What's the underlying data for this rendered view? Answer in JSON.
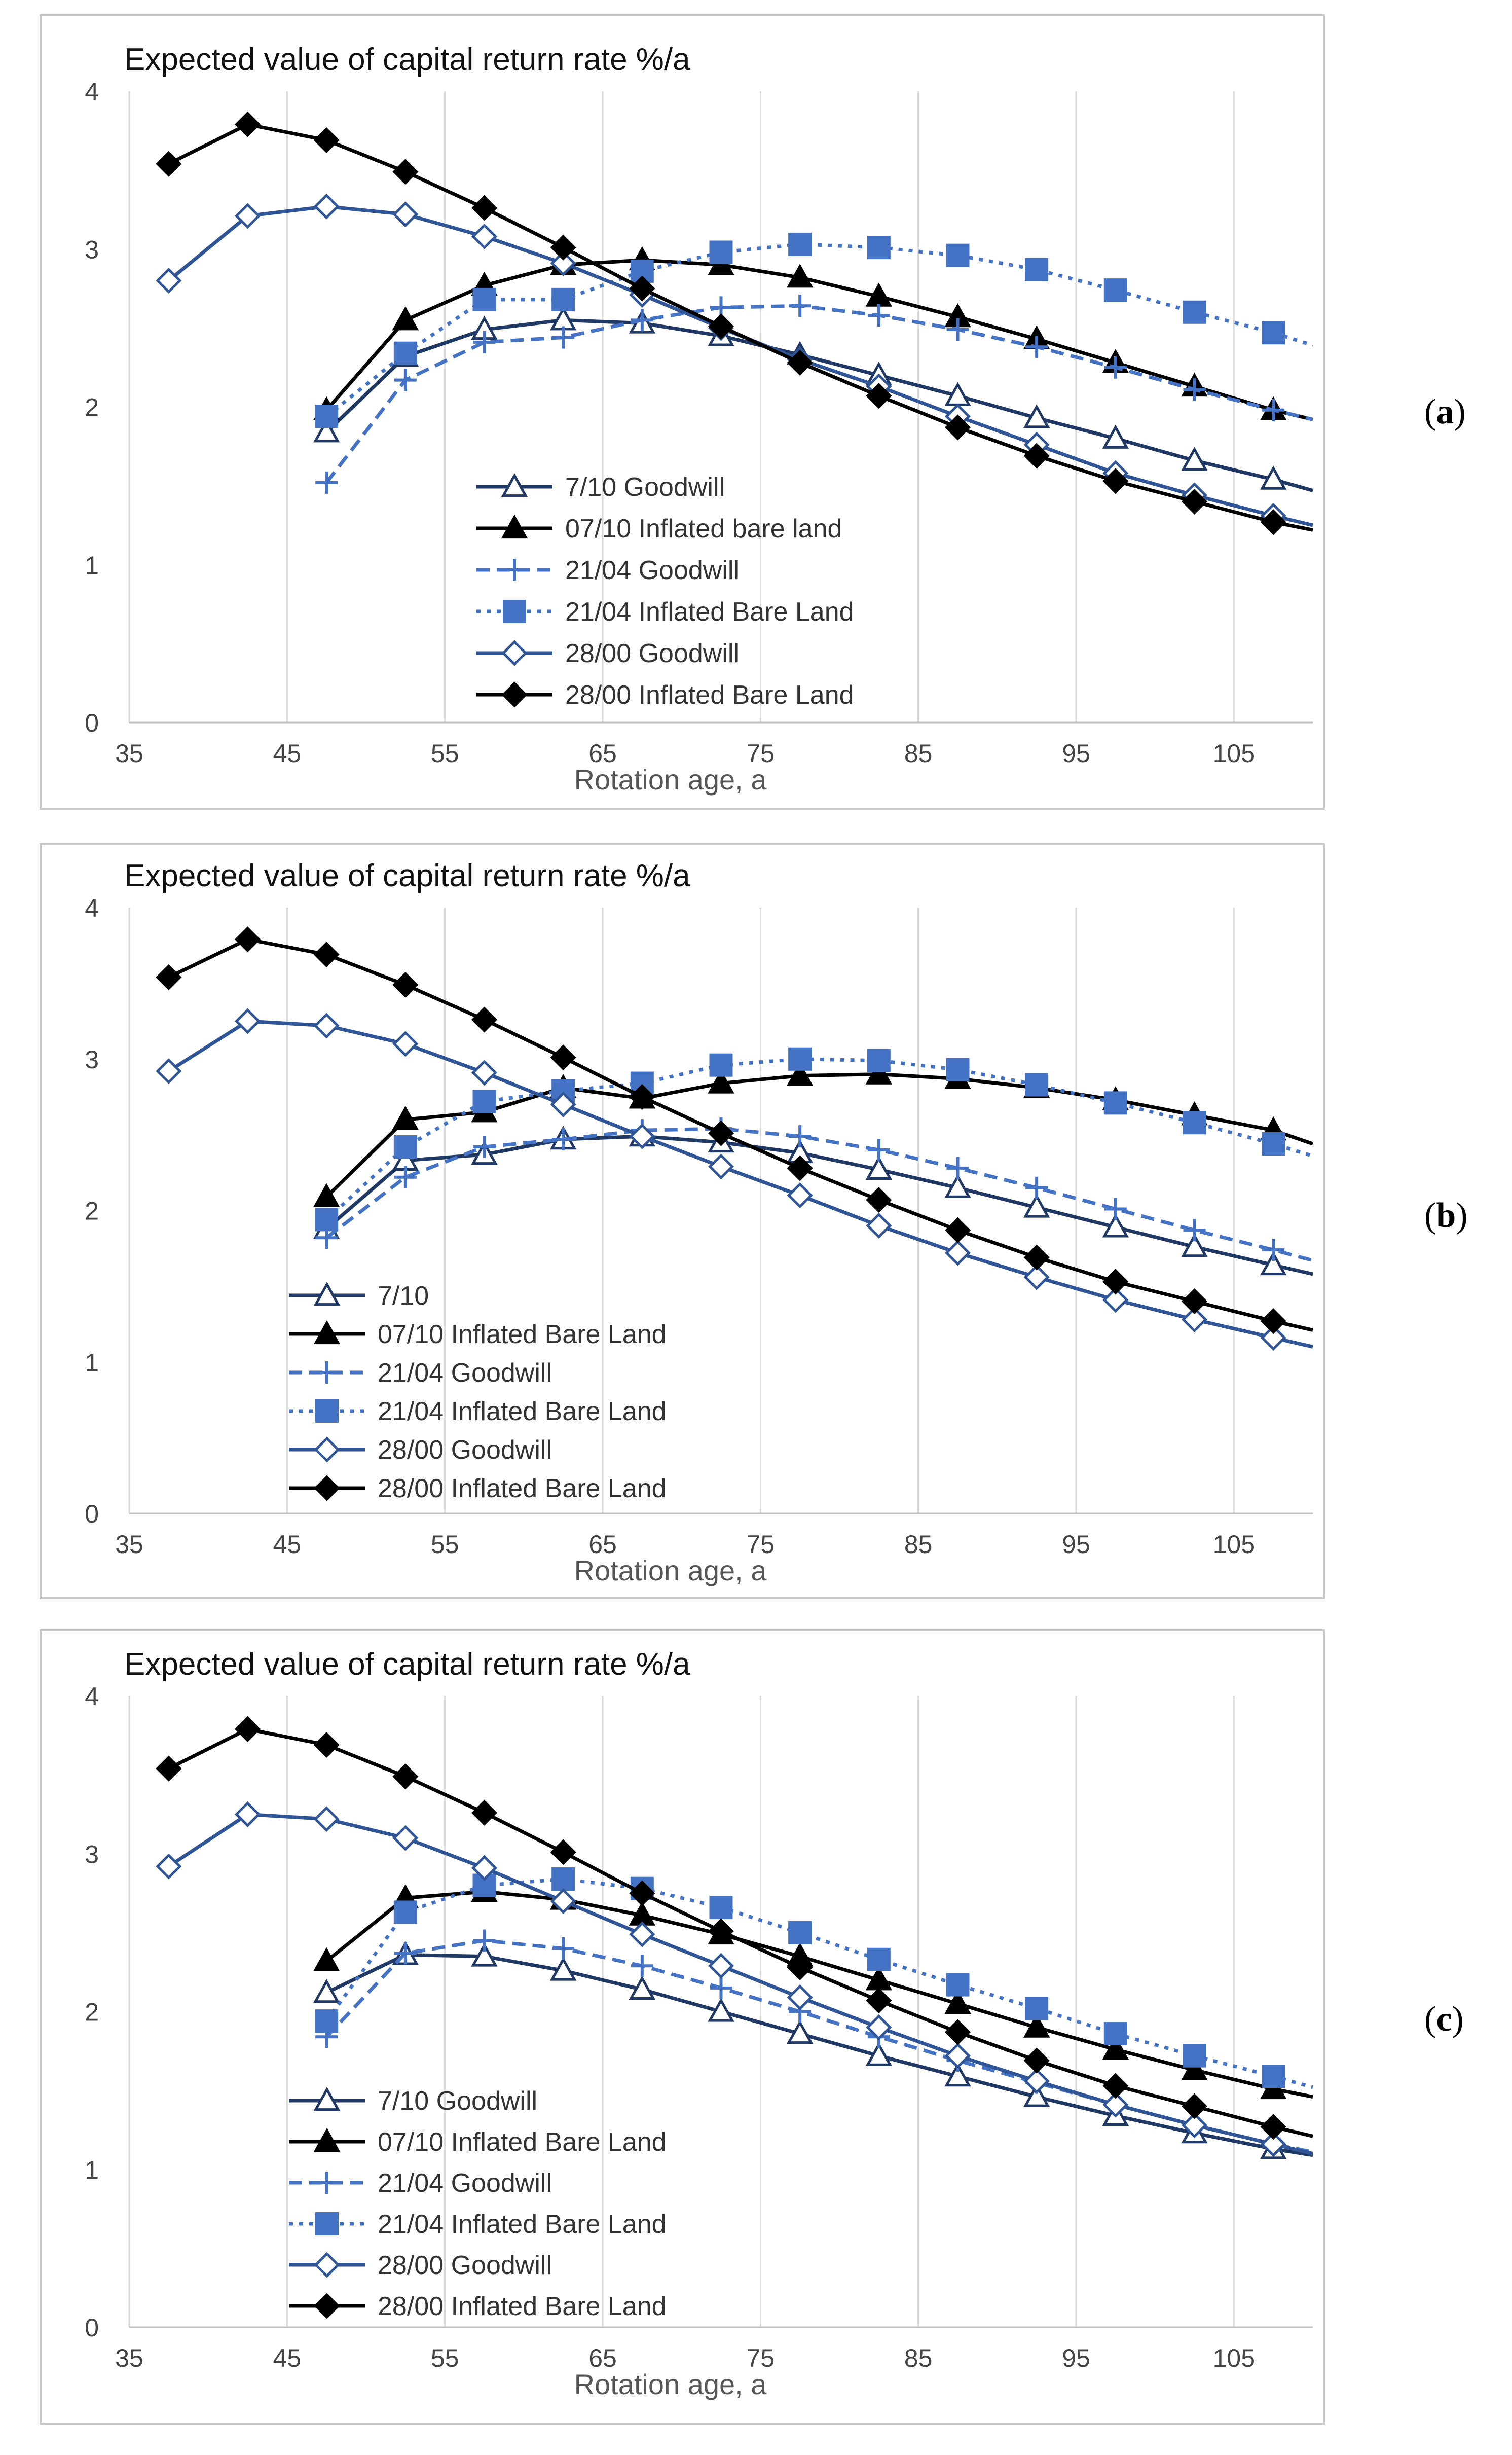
{
  "chart_data": [
    {
      "panel_label": "a",
      "type": "line",
      "title": "Expected value of capital return rate  %/a",
      "xlabel": "Rotation age, a",
      "ylabel": "",
      "xlim": [
        35,
        110
      ],
      "ylim": [
        0,
        4
      ],
      "xticks": [
        35,
        45,
        55,
        65,
        75,
        85,
        95,
        105
      ],
      "yticks": [
        0,
        1,
        2,
        3,
        4
      ],
      "grid": "vertical",
      "series": [
        {
          "name": "7/10 Goodwill",
          "color": "#1f3864",
          "dash": "solid",
          "marker": "triangle-open",
          "x": [
            47.5,
            52.5,
            57.5,
            62.5,
            67.5,
            72.5,
            77.5,
            82.5,
            87.5,
            92.5,
            97.5,
            102.5,
            107.5,
            110
          ],
          "y": [
            1.84,
            2.32,
            2.49,
            2.55,
            2.53,
            2.45,
            2.33,
            2.2,
            2.07,
            1.93,
            1.8,
            1.66,
            1.54,
            1.47
          ]
        },
        {
          "name": "07/10 Inflated bare land",
          "color": "#000000",
          "dash": "solid",
          "marker": "triangle",
          "x": [
            47.5,
            52.5,
            57.5,
            62.5,
            67.5,
            72.5,
            77.5,
            82.5,
            87.5,
            92.5,
            97.5,
            102.5,
            107.5,
            110
          ],
          "y": [
            1.98,
            2.55,
            2.77,
            2.9,
            2.93,
            2.9,
            2.82,
            2.7,
            2.57,
            2.43,
            2.28,
            2.13,
            1.98,
            1.92
          ]
        },
        {
          "name": "21/04 Goodwill",
          "color": "#4472c4",
          "dash": "dashed",
          "marker": "plus",
          "x": [
            47.5,
            52.5,
            57.5,
            62.5,
            67.5,
            72.5,
            77.5,
            82.5,
            87.5,
            92.5,
            97.5,
            102.5,
            107.5,
            110
          ],
          "y": [
            1.52,
            2.17,
            2.41,
            2.44,
            2.55,
            2.63,
            2.64,
            2.58,
            2.49,
            2.38,
            2.25,
            2.11,
            1.98,
            1.92
          ]
        },
        {
          "name": "21/04 Inflated Bare Land",
          "color": "#4472c4",
          "dash": "dotted",
          "marker": "square",
          "x": [
            47.5,
            52.5,
            57.5,
            62.5,
            67.5,
            72.5,
            77.5,
            82.5,
            87.5,
            92.5,
            97.5,
            102.5,
            107.5,
            110
          ],
          "y": [
            1.94,
            2.34,
            2.68,
            2.68,
            2.86,
            2.98,
            3.03,
            3.01,
            2.96,
            2.87,
            2.74,
            2.6,
            2.47,
            2.39
          ]
        },
        {
          "name": "28/00 Goodwill",
          "color": "#2f5597",
          "dash": "solid",
          "marker": "diamond-open",
          "x": [
            37.5,
            42.5,
            47.5,
            52.5,
            57.5,
            62.5,
            67.5,
            72.5,
            77.5,
            82.5,
            87.5,
            92.5,
            97.5,
            102.5,
            107.5,
            110
          ],
          "y": [
            2.8,
            3.21,
            3.27,
            3.22,
            3.08,
            2.91,
            2.71,
            2.5,
            2.3,
            2.13,
            1.94,
            1.76,
            1.58,
            1.44,
            1.31,
            1.25
          ]
        },
        {
          "name": "28/00 Inflated Bare Land",
          "color": "#000000",
          "dash": "solid",
          "marker": "diamond",
          "x": [
            37.5,
            42.5,
            47.5,
            52.5,
            57.5,
            62.5,
            67.5,
            72.5,
            77.5,
            82.5,
            87.5,
            92.5,
            97.5,
            102.5,
            107.5,
            110
          ],
          "y": [
            3.54,
            3.79,
            3.69,
            3.49,
            3.26,
            3.01,
            2.75,
            2.51,
            2.28,
            2.07,
            1.87,
            1.69,
            1.53,
            1.4,
            1.27,
            1.22
          ]
        }
      ]
    },
    {
      "panel_label": "b",
      "type": "line",
      "title": "Expected value of capital return rate  %/a",
      "xlabel": "Rotation age, a",
      "ylabel": "",
      "xlim": [
        35,
        110
      ],
      "ylim": [
        0,
        4
      ],
      "xticks": [
        35,
        45,
        55,
        65,
        75,
        85,
        95,
        105
      ],
      "yticks": [
        0,
        1,
        2,
        3,
        4
      ],
      "grid": "vertical",
      "series": [
        {
          "name": "7/10",
          "color": "#1f3864",
          "dash": "solid",
          "marker": "triangle-open",
          "x": [
            47.5,
            52.5,
            57.5,
            62.5,
            67.5,
            72.5,
            77.5,
            82.5,
            87.5,
            92.5,
            97.5,
            102.5,
            107.5,
            110
          ],
          "y": [
            1.88,
            2.33,
            2.37,
            2.47,
            2.49,
            2.45,
            2.38,
            2.27,
            2.15,
            2.02,
            1.89,
            1.76,
            1.64,
            1.58
          ]
        },
        {
          "name": "07/10 Inflated Bare Land",
          "color": "#000000",
          "dash": "solid",
          "marker": "triangle",
          "x": [
            47.5,
            52.5,
            57.5,
            62.5,
            67.5,
            72.5,
            77.5,
            82.5,
            87.5,
            92.5,
            97.5,
            102.5,
            107.5,
            110
          ],
          "y": [
            2.09,
            2.6,
            2.65,
            2.81,
            2.74,
            2.84,
            2.89,
            2.9,
            2.87,
            2.81,
            2.73,
            2.63,
            2.53,
            2.44
          ]
        },
        {
          "name": "21/04 Goodwill",
          "color": "#4472c4",
          "dash": "dashed",
          "marker": "plus",
          "x": [
            47.5,
            52.5,
            57.5,
            62.5,
            67.5,
            72.5,
            77.5,
            82.5,
            87.5,
            92.5,
            97.5,
            102.5,
            107.5,
            110
          ],
          "y": [
            1.82,
            2.22,
            2.42,
            2.47,
            2.53,
            2.54,
            2.49,
            2.4,
            2.28,
            2.15,
            2.01,
            1.87,
            1.74,
            1.67
          ]
        },
        {
          "name": "21/04 Inflated Bare Land",
          "color": "#4472c4",
          "dash": "dotted",
          "marker": "square",
          "x": [
            47.5,
            52.5,
            57.5,
            62.5,
            67.5,
            72.5,
            77.5,
            82.5,
            87.5,
            92.5,
            97.5,
            102.5,
            107.5,
            110
          ],
          "y": [
            1.94,
            2.42,
            2.72,
            2.79,
            2.84,
            2.96,
            3.0,
            2.99,
            2.93,
            2.83,
            2.71,
            2.58,
            2.44,
            2.36
          ]
        },
        {
          "name": "28/00 Goodwill",
          "color": "#2f5597",
          "dash": "solid",
          "marker": "diamond-open",
          "x": [
            37.5,
            42.5,
            47.5,
            52.5,
            57.5,
            62.5,
            67.5,
            72.5,
            77.5,
            82.5,
            87.5,
            92.5,
            97.5,
            102.5,
            107.5,
            110
          ],
          "y": [
            2.92,
            3.25,
            3.22,
            3.1,
            2.91,
            2.7,
            2.49,
            2.29,
            2.1,
            1.9,
            1.72,
            1.56,
            1.41,
            1.28,
            1.16,
            1.1
          ]
        },
        {
          "name": "28/00 Inflated Bare Land",
          "color": "#000000",
          "dash": "solid",
          "marker": "diamond",
          "x": [
            37.5,
            42.5,
            47.5,
            52.5,
            57.5,
            62.5,
            67.5,
            72.5,
            77.5,
            82.5,
            87.5,
            92.5,
            97.5,
            102.5,
            107.5,
            110
          ],
          "y": [
            3.54,
            3.79,
            3.69,
            3.49,
            3.26,
            3.01,
            2.75,
            2.51,
            2.28,
            2.07,
            1.87,
            1.69,
            1.53,
            1.4,
            1.27,
            1.21
          ]
        }
      ]
    },
    {
      "panel_label": "c",
      "type": "line",
      "title": "Expected value of capital return rate  %/a",
      "xlabel": "Rotation age, a",
      "ylabel": "",
      "xlim": [
        35,
        110
      ],
      "ylim": [
        0,
        4
      ],
      "xticks": [
        35,
        45,
        55,
        65,
        75,
        85,
        95,
        105
      ],
      "yticks": [
        0,
        1,
        2,
        3,
        4
      ],
      "grid": "vertical",
      "series": [
        {
          "name": "7/10 Goodwill",
          "color": "#1f3864",
          "dash": "solid",
          "marker": "triangle-open",
          "x": [
            47.5,
            52.5,
            57.5,
            62.5,
            67.5,
            72.5,
            77.5,
            82.5,
            87.5,
            92.5,
            97.5,
            102.5,
            107.5,
            110
          ],
          "y": [
            2.12,
            2.36,
            2.35,
            2.26,
            2.14,
            2.0,
            1.86,
            1.72,
            1.59,
            1.46,
            1.34,
            1.23,
            1.13,
            1.09
          ]
        },
        {
          "name": "07/10 Inflated Bare Land",
          "color": "#000000",
          "dash": "solid",
          "marker": "triangle",
          "x": [
            47.5,
            52.5,
            57.5,
            62.5,
            67.5,
            72.5,
            77.5,
            82.5,
            87.5,
            92.5,
            97.5,
            102.5,
            107.5,
            110
          ],
          "y": [
            2.32,
            2.72,
            2.76,
            2.71,
            2.61,
            2.49,
            2.35,
            2.2,
            2.05,
            1.9,
            1.76,
            1.63,
            1.51,
            1.46
          ]
        },
        {
          "name": "21/04 Goodwill",
          "color": "#4472c4",
          "dash": "dashed",
          "marker": "plus",
          "x": [
            47.5,
            52.5,
            57.5,
            62.5,
            67.5,
            72.5,
            77.5,
            82.5,
            87.5,
            92.5,
            97.5,
            102.5,
            107.5,
            110
          ],
          "y": [
            1.84,
            2.37,
            2.45,
            2.4,
            2.29,
            2.15,
            2.0,
            1.84,
            1.69,
            1.55,
            1.41,
            1.28,
            1.16,
            1.11
          ]
        },
        {
          "name": "21/04 Inflated Bare Land",
          "color": "#4472c4",
          "dash": "dotted",
          "marker": "square",
          "x": [
            47.5,
            52.5,
            57.5,
            62.5,
            67.5,
            72.5,
            77.5,
            82.5,
            87.5,
            92.5,
            97.5,
            102.5,
            107.5,
            110
          ],
          "y": [
            1.94,
            2.63,
            2.8,
            2.84,
            2.78,
            2.66,
            2.5,
            2.33,
            2.17,
            2.02,
            1.86,
            1.72,
            1.59,
            1.52
          ]
        },
        {
          "name": "28/00 Goodwill",
          "color": "#2f5597",
          "dash": "solid",
          "marker": "diamond-open",
          "x": [
            37.5,
            42.5,
            47.5,
            52.5,
            57.5,
            62.5,
            67.5,
            72.5,
            77.5,
            82.5,
            87.5,
            92.5,
            97.5,
            102.5,
            107.5,
            110
          ],
          "y": [
            2.92,
            3.25,
            3.22,
            3.1,
            2.91,
            2.7,
            2.49,
            2.29,
            2.09,
            1.9,
            1.72,
            1.56,
            1.41,
            1.28,
            1.16,
            1.1
          ]
        },
        {
          "name": "28/00 Inflated Bare Land",
          "color": "#000000",
          "dash": "solid",
          "marker": "diamond",
          "x": [
            37.5,
            42.5,
            47.5,
            52.5,
            57.5,
            62.5,
            67.5,
            72.5,
            77.5,
            82.5,
            87.5,
            92.5,
            97.5,
            102.5,
            107.5,
            110
          ],
          "y": [
            3.54,
            3.79,
            3.69,
            3.49,
            3.26,
            3.01,
            2.75,
            2.51,
            2.28,
            2.07,
            1.87,
            1.69,
            1.53,
            1.4,
            1.27,
            1.21
          ]
        }
      ]
    }
  ]
}
